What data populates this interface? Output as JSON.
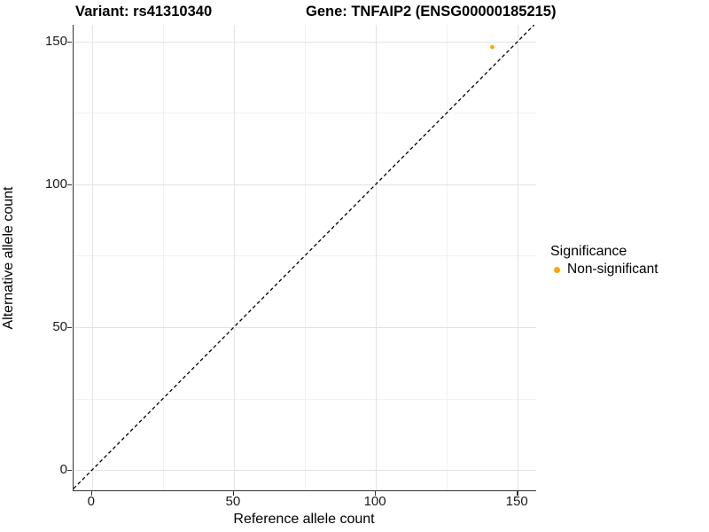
{
  "figure": {
    "title_variant": "Variant: rs41310340",
    "title_gene": "Gene: TNFAIP2 (ENSG00000185215)"
  },
  "legend": {
    "title": "Significance",
    "items": [
      {
        "label": "Non-significant",
        "color": "#FFA500",
        "marker": "circle-icon"
      }
    ]
  },
  "colors": {
    "point": "#FFA500",
    "identity_line": "#000000",
    "grid_major": "#E3E3E3",
    "grid_minor": "#F1F1F1",
    "axis_line": "#333333",
    "background": "#FFFFFF"
  },
  "chart_data": {
    "type": "scatter",
    "title": "Variant: rs41310340 — Gene: TNFAIP2 (ENSG00000185215)",
    "xlabel": "Reference allele count",
    "ylabel": "Alternative allele count",
    "xlim": [
      -6.5,
      156.5
    ],
    "ylim": [
      -7.1,
      155.8
    ],
    "x_ticks": [
      0,
      50,
      100,
      150
    ],
    "y_ticks": [
      0,
      50,
      100,
      150
    ],
    "x_minor_ticks": [
      25,
      75,
      125
    ],
    "y_minor_ticks": [
      25,
      75,
      125
    ],
    "grid": true,
    "legend_position": "right",
    "series": [
      {
        "name": "Non-significant",
        "color": "#FFA500",
        "points": [
          {
            "x": 141,
            "y": 148
          }
        ]
      }
    ],
    "reference_line": {
      "type": "identity",
      "intercept": 0,
      "slope": 1,
      "style": "dashed",
      "color": "#000000"
    }
  }
}
